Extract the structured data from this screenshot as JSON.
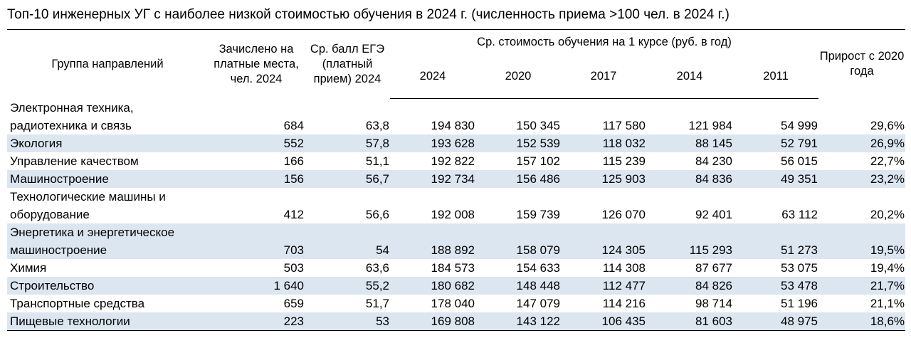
{
  "title": "Топ-10 инженерных УГ с наиболее низкой стоимостью обучения в 2024 г. (численность приема >100 чел. в 2024 г.)",
  "headers": {
    "group": "Группа направлений",
    "enrolled": "Зачислено на платные места, чел. 2024",
    "ege": "Ср. балл ЕГЭ (платный прием) 2024",
    "cost_group": "Ср. стоимость обучения на 1 курсе (руб. в год)",
    "years": [
      "2024",
      "2020",
      "2017",
      "2014",
      "2011"
    ],
    "growth": "Прирост с 2020 года"
  },
  "rows": [
    {
      "name": "Электронная техника, радиотехника и связь",
      "enrolled": "684",
      "ege": "63,8",
      "c2024": "194 830",
      "c2020": "150 345",
      "c2017": "117 580",
      "c2014": "121 984",
      "c2011": "54 999",
      "growth": "29,6%"
    },
    {
      "name": "Экология",
      "enrolled": "552",
      "ege": "57,8",
      "c2024": "193 628",
      "c2020": "152 539",
      "c2017": "118 032",
      "c2014": "88 145",
      "c2011": "52 791",
      "growth": "26,9%"
    },
    {
      "name": "Управление качеством",
      "enrolled": "166",
      "ege": "51,1",
      "c2024": "192 822",
      "c2020": "157 102",
      "c2017": "115 239",
      "c2014": "84 230",
      "c2011": "56 015",
      "growth": "22,7%"
    },
    {
      "name": "Машиностроение",
      "enrolled": "156",
      "ege": "56,7",
      "c2024": "192 734",
      "c2020": "156 486",
      "c2017": "125 903",
      "c2014": "84 836",
      "c2011": "49 351",
      "growth": "23,2%"
    },
    {
      "name": "Технологические машины и оборудование",
      "enrolled": "412",
      "ege": "56,6",
      "c2024": "192 008",
      "c2020": "159 739",
      "c2017": "126 070",
      "c2014": "92 401",
      "c2011": "63 112",
      "growth": "20,2%"
    },
    {
      "name": "Энергетика и энергетическое машиностроение",
      "enrolled": "703",
      "ege": "54",
      "c2024": "188 892",
      "c2020": "158 079",
      "c2017": "124 305",
      "c2014": "115 293",
      "c2011": "51 273",
      "growth": "19,5%"
    },
    {
      "name": "Химия",
      "enrolled": "503",
      "ege": "63,6",
      "c2024": "184 573",
      "c2020": "154 633",
      "c2017": "114 308",
      "c2014": "87 677",
      "c2011": "53 075",
      "growth": "19,4%"
    },
    {
      "name": "Строительство",
      "enrolled": "1 640",
      "ege": "55,2",
      "c2024": "180 682",
      "c2020": "148 448",
      "c2017": "112 477",
      "c2014": "84 826",
      "c2011": "53 478",
      "growth": "21,7%"
    },
    {
      "name": "Транспортные средства",
      "enrolled": "659",
      "ege": "51,7",
      "c2024": "178 040",
      "c2020": "147 079",
      "c2017": "114 216",
      "c2014": "98 714",
      "c2011": "51 196",
      "growth": "21,1%"
    },
    {
      "name": "Пищевые технологии",
      "enrolled": "223",
      "ege": "53",
      "c2024": "169 808",
      "c2020": "143 122",
      "c2017": "106 435",
      "c2014": "81 603",
      "c2011": "48 975",
      "growth": "18,6%"
    }
  ],
  "row_layout": {
    "tall": [
      0,
      4,
      5
    ],
    "shaded": [
      1,
      3,
      5,
      7,
      9
    ]
  },
  "colors": {
    "stripe": "#dce6f1",
    "border": "#000000"
  }
}
